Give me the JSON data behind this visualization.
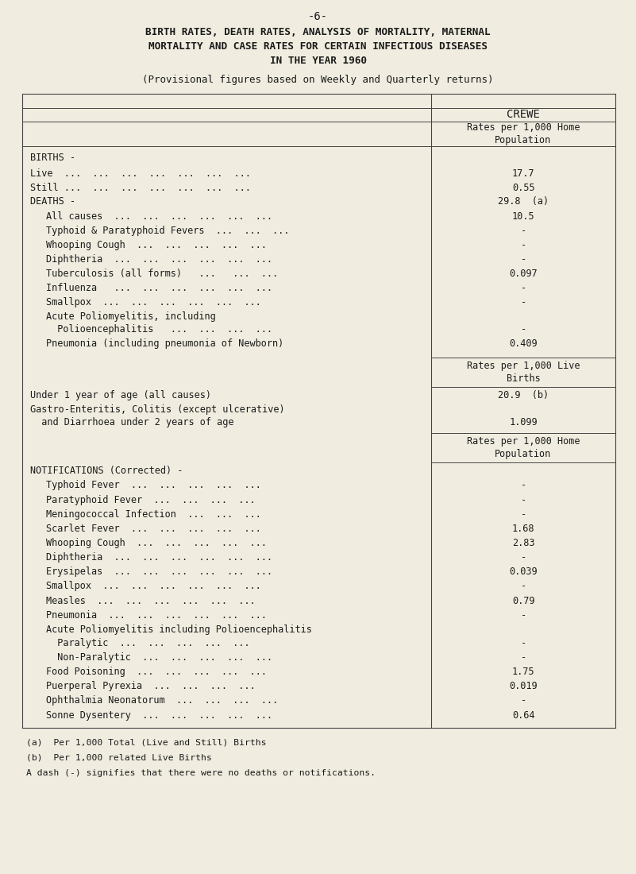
{
  "page_number": "-6-",
  "title_line1": "BIRTH RATES, DEATH RATES, ANALYSIS OF MORTALITY, MATERNAL",
  "title_line2": "MORTALITY AND CASE RATES FOR CERTAIN INFECTIOUS DISEASES",
  "title_line3": "IN THE YEAR 1960",
  "subtitle": "(Provisional figures based on Weekly and Quarterly returns)",
  "column_header": "CREWE",
  "subheader1": "Rates per 1,000 Home\nPopulation",
  "bg_color": "#f0ede0",
  "text_color": "#1a1a1a",
  "line_color": "#444444"
}
